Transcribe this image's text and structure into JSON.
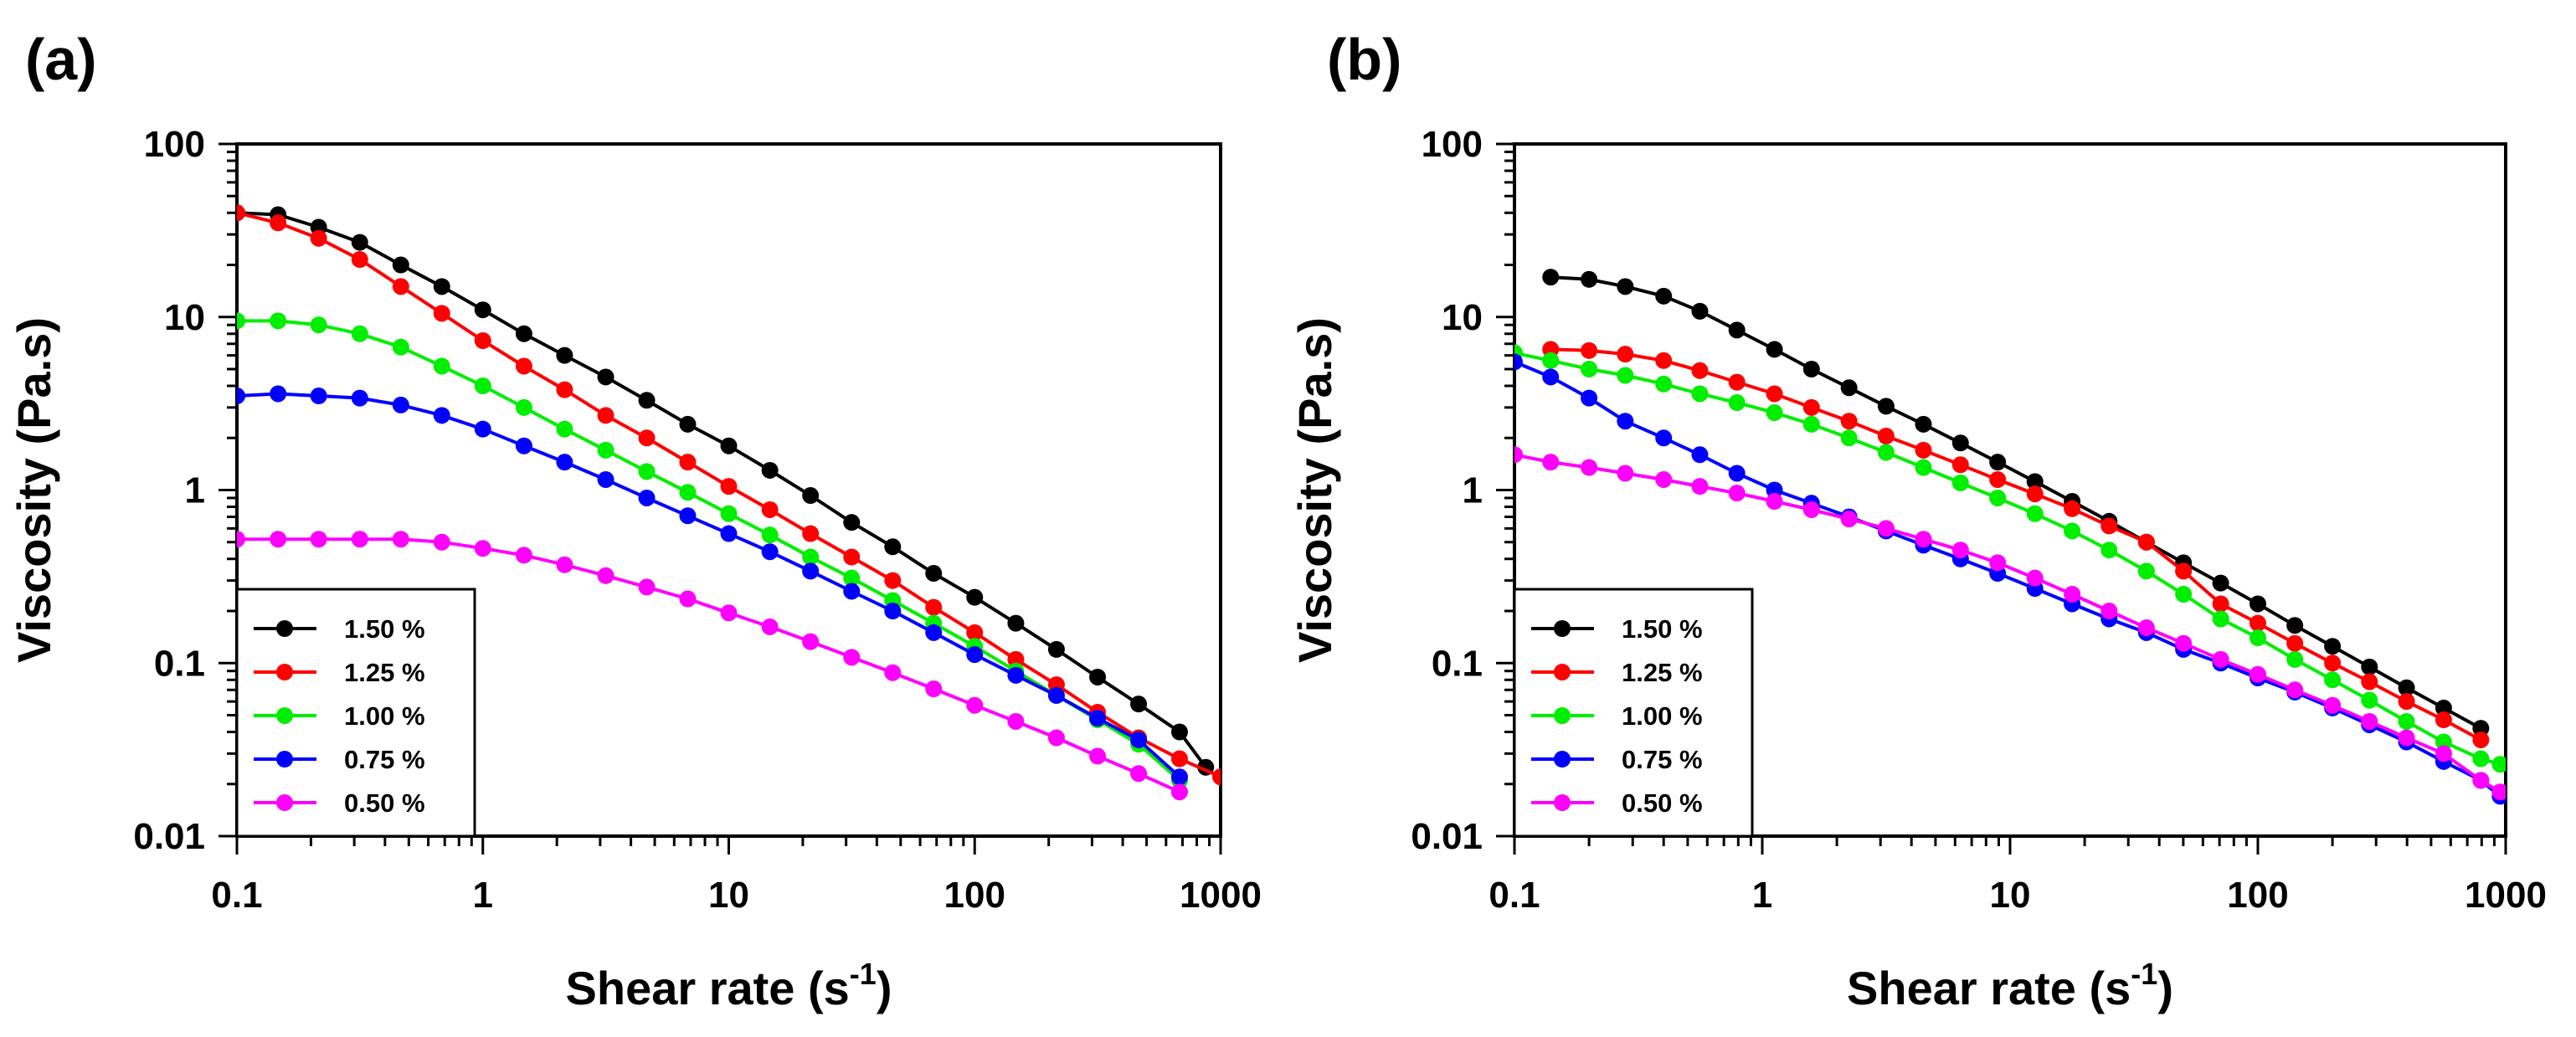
{
  "chart_data": [
    {
      "type": "line",
      "panel_label": "(a)",
      "xscale": "log",
      "yscale": "log",
      "xlim": [
        0.1,
        1000
      ],
      "ylim": [
        0.01,
        100
      ],
      "x_ticks": [
        "0.1",
        "1",
        "10",
        "100",
        "1000"
      ],
      "y_ticks": [
        "0.01",
        "0.1",
        "1",
        "10",
        "100"
      ],
      "xlabel": "Shear rate (s",
      "xlabel_sup": "-1",
      "xlabel_end": ")",
      "ylabel": "Viscosity (Pa.s)",
      "legend_position": "bottom-left",
      "series": [
        {
          "name": "1.50 %",
          "color": "#000000",
          "x": [
            0.1,
            0.147,
            0.215,
            0.316,
            0.464,
            0.681,
            1,
            1.47,
            2.15,
            3.16,
            4.64,
            6.81,
            10,
            14.7,
            21.5,
            31.6,
            46.4,
            68.1,
            100,
            147,
            215,
            316,
            464,
            681,
            870
          ],
          "y": [
            40,
            39,
            33,
            27,
            20,
            15,
            11,
            8,
            6,
            4.5,
            3.3,
            2.4,
            1.8,
            1.3,
            0.93,
            0.65,
            0.47,
            0.33,
            0.24,
            0.17,
            0.12,
            0.083,
            0.058,
            0.04,
            0.025
          ]
        },
        {
          "name": "1.25 %",
          "color": "#ff0000",
          "x": [
            0.1,
            0.147,
            0.215,
            0.316,
            0.464,
            0.681,
            1,
            1.47,
            2.15,
            3.16,
            4.64,
            6.81,
            10,
            14.7,
            21.5,
            31.6,
            46.4,
            68.1,
            100,
            147,
            215,
            316,
            464,
            681,
            1000
          ],
          "y": [
            40,
            35,
            28.5,
            21.5,
            15,
            10.5,
            7.3,
            5.2,
            3.8,
            2.7,
            2.0,
            1.45,
            1.05,
            0.77,
            0.56,
            0.41,
            0.3,
            0.21,
            0.15,
            0.105,
            0.075,
            0.052,
            0.037,
            0.028,
            0.022
          ]
        },
        {
          "name": "1.00 %",
          "color": "#00ee00",
          "x": [
            0.1,
            0.147,
            0.215,
            0.316,
            0.464,
            0.681,
            1,
            1.47,
            2.15,
            3.16,
            4.64,
            6.81,
            10,
            14.7,
            21.5,
            31.6,
            46.4,
            68.1,
            100,
            147,
            215,
            316,
            464,
            681
          ],
          "y": [
            9.5,
            9.5,
            9,
            8,
            6.7,
            5.2,
            4,
            3,
            2.25,
            1.7,
            1.28,
            0.97,
            0.73,
            0.55,
            0.41,
            0.31,
            0.23,
            0.17,
            0.125,
            0.09,
            0.065,
            0.047,
            0.034,
            0.021
          ]
        },
        {
          "name": "0.75 %",
          "color": "#0000ff",
          "x": [
            0.1,
            0.147,
            0.215,
            0.316,
            0.464,
            0.681,
            1,
            1.47,
            2.15,
            3.16,
            4.64,
            6.81,
            10,
            14.7,
            21.5,
            31.6,
            46.4,
            68.1,
            100,
            147,
            215,
            316,
            464,
            681
          ],
          "y": [
            3.5,
            3.6,
            3.5,
            3.4,
            3.1,
            2.7,
            2.25,
            1.8,
            1.45,
            1.15,
            0.9,
            0.71,
            0.56,
            0.44,
            0.34,
            0.26,
            0.2,
            0.15,
            0.112,
            0.085,
            0.065,
            0.048,
            0.036,
            0.022
          ]
        },
        {
          "name": "0.50 %",
          "color": "#ff00ff",
          "x": [
            0.1,
            0.147,
            0.215,
            0.316,
            0.464,
            0.681,
            1,
            1.47,
            2.15,
            3.16,
            4.64,
            6.81,
            10,
            14.7,
            21.5,
            31.6,
            46.4,
            68.1,
            100,
            147,
            215,
            316,
            464,
            681
          ],
          "y": [
            0.52,
            0.52,
            0.52,
            0.52,
            0.52,
            0.5,
            0.46,
            0.42,
            0.37,
            0.32,
            0.275,
            0.235,
            0.195,
            0.162,
            0.133,
            0.108,
            0.088,
            0.071,
            0.057,
            0.046,
            0.037,
            0.029,
            0.023,
            0.018
          ]
        }
      ]
    },
    {
      "type": "line",
      "panel_label": "(b)",
      "xscale": "log",
      "yscale": "log",
      "xlim": [
        0.1,
        1000
      ],
      "ylim": [
        0.01,
        100
      ],
      "x_ticks": [
        "0.1",
        "1",
        "10",
        "100",
        "1000"
      ],
      "y_ticks": [
        "0.01",
        "0.1",
        "1",
        "10",
        "100"
      ],
      "xlabel": "Shear rate (s",
      "xlabel_sup": "-1",
      "xlabel_end": ")",
      "ylabel": "Viscosity (Pa.s)",
      "legend_position": "bottom-left",
      "series": [
        {
          "name": "1.50 %",
          "color": "#000000",
          "x": [
            0.14,
            0.2,
            0.28,
            0.4,
            0.56,
            0.79,
            1.12,
            1.58,
            2.24,
            3.16,
            4.47,
            6.31,
            8.91,
            12.6,
            17.8,
            25.1,
            35.5,
            50.1,
            70.8,
            100,
            141,
            200,
            282,
            398,
            562,
            794
          ],
          "y": [
            17,
            16.5,
            15,
            13.2,
            10.8,
            8.4,
            6.5,
            5,
            3.9,
            3.05,
            2.4,
            1.87,
            1.45,
            1.12,
            0.86,
            0.66,
            0.5,
            0.38,
            0.29,
            0.22,
            0.165,
            0.125,
            0.095,
            0.072,
            0.055,
            0.042
          ]
        },
        {
          "name": "1.25 %",
          "color": "#ff0000",
          "x": [
            0.14,
            0.2,
            0.28,
            0.4,
            0.56,
            0.79,
            1.12,
            1.58,
            2.24,
            3.16,
            4.47,
            6.31,
            8.91,
            12.6,
            17.8,
            25.1,
            35.5,
            50.1,
            70.8,
            100,
            141,
            200,
            282,
            398,
            562,
            794
          ],
          "y": [
            6.5,
            6.4,
            6.1,
            5.6,
            4.9,
            4.2,
            3.6,
            3,
            2.5,
            2.05,
            1.7,
            1.4,
            1.15,
            0.95,
            0.78,
            0.62,
            0.5,
            0.34,
            0.22,
            0.17,
            0.13,
            0.1,
            0.078,
            0.06,
            0.047,
            0.036
          ]
        },
        {
          "name": "1.00 %",
          "color": "#00ee00",
          "x": [
            0.1,
            0.14,
            0.2,
            0.28,
            0.4,
            0.56,
            0.79,
            1.12,
            1.58,
            2.24,
            3.16,
            4.47,
            6.31,
            8.91,
            12.6,
            17.8,
            25.1,
            35.5,
            50.1,
            70.8,
            100,
            141,
            200,
            282,
            398,
            562,
            794,
            950
          ],
          "y": [
            6.2,
            5.6,
            5.0,
            4.6,
            4.1,
            3.6,
            3.2,
            2.8,
            2.4,
            2.0,
            1.65,
            1.35,
            1.1,
            0.9,
            0.73,
            0.58,
            0.45,
            0.34,
            0.25,
            0.18,
            0.14,
            0.105,
            0.08,
            0.061,
            0.046,
            0.035,
            0.028,
            0.026
          ]
        },
        {
          "name": "0.75 %",
          "color": "#0000ff",
          "x": [
            0.1,
            0.14,
            0.2,
            0.28,
            0.4,
            0.56,
            0.79,
            1.12,
            1.58,
            2.24,
            3.16,
            4.47,
            6.31,
            8.91,
            12.6,
            17.8,
            25.1,
            35.5,
            50.1,
            70.8,
            100,
            141,
            200,
            282,
            398,
            562,
            794,
            950
          ],
          "y": [
            5.5,
            4.5,
            3.4,
            2.5,
            2.0,
            1.6,
            1.25,
            1.0,
            0.84,
            0.7,
            0.58,
            0.48,
            0.4,
            0.33,
            0.27,
            0.22,
            0.18,
            0.15,
            0.12,
            0.1,
            0.082,
            0.068,
            0.055,
            0.044,
            0.035,
            0.027,
            0.021,
            0.017
          ]
        },
        {
          "name": "0.50 %",
          "color": "#ff00ff",
          "x": [
            0.1,
            0.14,
            0.2,
            0.28,
            0.4,
            0.56,
            0.79,
            1.12,
            1.58,
            2.24,
            3.16,
            4.47,
            6.31,
            8.91,
            12.6,
            17.8,
            25.1,
            35.5,
            50.1,
            70.8,
            100,
            141,
            200,
            282,
            398,
            562,
            794,
            950
          ],
          "y": [
            1.6,
            1.45,
            1.35,
            1.25,
            1.15,
            1.05,
            0.96,
            0.86,
            0.77,
            0.68,
            0.6,
            0.52,
            0.45,
            0.38,
            0.31,
            0.25,
            0.2,
            0.16,
            0.13,
            0.105,
            0.086,
            0.07,
            0.057,
            0.046,
            0.037,
            0.03,
            0.021,
            0.018
          ]
        }
      ]
    }
  ]
}
